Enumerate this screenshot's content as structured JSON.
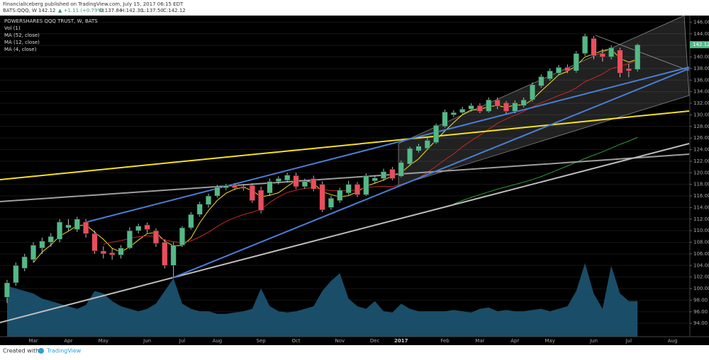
{
  "header": {
    "line1": "FinancialIceberg published on TradingView.com, July 15, 2017 06:15 EDT",
    "symbol": "BATS:QQQ, W",
    "last": "142.12",
    "change": "▲ +1.11 (+0.79%)",
    "open": "O:137.84",
    "high": "H:142.30",
    "low": "L:137.50",
    "close": "C:142.12"
  },
  "legend": [
    "POWERSHARES QQQ TRUST, W, BATS",
    "Vol (1)",
    "MA (52, close)",
    "MA (12, close)",
    "MA (4, close)"
  ],
  "footer": {
    "created": "Created with",
    "brand": "TradingView"
  },
  "chart_data": {
    "type": "candlestick",
    "categories": [
      null,
      null,
      null,
      "Mar",
      null,
      null,
      null,
      "Apr",
      null,
      null,
      null,
      "May",
      null,
      null,
      null,
      null,
      "Jun",
      null,
      null,
      null,
      "Jul",
      null,
      null,
      null,
      "Aug",
      null,
      null,
      null,
      null,
      "Sep",
      null,
      null,
      null,
      "Oct",
      null,
      null,
      null,
      null,
      "Nov",
      null,
      null,
      null,
      "Dec",
      null,
      null,
      "2017",
      null,
      null,
      null,
      null,
      "Feb",
      null,
      null,
      null,
      "Mar",
      null,
      null,
      null,
      "Apr",
      null,
      null,
      null,
      "May",
      null,
      null,
      null,
      null,
      "Jun",
      null,
      null,
      null,
      "Jul",
      null,
      null,
      null,
      null,
      "Aug",
      null
    ],
    "open": [
      98.5,
      101,
      103.5,
      105,
      107,
      108,
      108.5,
      110.5,
      110.2,
      111.5,
      109.5,
      106.5,
      106.2,
      105.8,
      107,
      110,
      111,
      110,
      108,
      104,
      107.5,
      110.5,
      112.8,
      114.5,
      116,
      117.4,
      117.9,
      117.6,
      117.8,
      117,
      116.5,
      118.5,
      118.7,
      119.5,
      117.6,
      119,
      118,
      114,
      115.2,
      116.5,
      118,
      116.2,
      118.6,
      119,
      120.6,
      119.4,
      121.5,
      123.8,
      124.2,
      125.2,
      128,
      130,
      130.4,
      131,
      131.6,
      130.6,
      132.6,
      132.1,
      130.6,
      131.6,
      132.6,
      135,
      136.2,
      137.2,
      138.2,
      137.6,
      140.6,
      143.2,
      140.6,
      140,
      141.2,
      138,
      137.84,
      null,
      null,
      null,
      null,
      null
    ],
    "high": [
      101.5,
      104.5,
      106,
      108,
      108.8,
      109.6,
      112,
      112,
      112.4,
      112,
      110,
      107.3,
      107,
      107.5,
      110.6,
      111.2,
      111.4,
      110.4,
      108.5,
      108,
      110.8,
      113.2,
      115,
      116.4,
      117.9,
      118.1,
      118.2,
      118,
      118.2,
      117.6,
      119,
      119.4,
      120,
      120,
      119,
      119.5,
      118.5,
      116,
      117.4,
      118.6,
      118.4,
      119.9,
      119.6,
      120.7,
      121,
      122.1,
      124.5,
      125,
      126,
      128.5,
      130.9,
      130.8,
      131.4,
      132,
      132,
      133,
      133,
      132.4,
      132.5,
      133,
      135.6,
      137,
      138,
      138.6,
      138.7,
      141,
      144,
      143.6,
      141.4,
      142,
      141.6,
      138.8,
      142.3,
      null,
      null,
      null,
      null,
      null
    ],
    "low": [
      97.5,
      100.5,
      103,
      104.5,
      106,
      107.2,
      108,
      110,
      109.8,
      108.8,
      106,
      105.2,
      105,
      105.2,
      106.8,
      109.5,
      109.6,
      107.2,
      103.5,
      102,
      107.2,
      110.2,
      112.4,
      114,
      115.7,
      117,
      117,
      116.9,
      114.8,
      113,
      116,
      118,
      118.3,
      117.2,
      117.2,
      116.8,
      113.2,
      113.6,
      114.8,
      116.2,
      115.8,
      116,
      118.2,
      118.6,
      118.7,
      119.2,
      121.2,
      123.5,
      124,
      125,
      127.8,
      129.6,
      130.1,
      130.6,
      130.3,
      130.4,
      131,
      130.2,
      130.3,
      131.3,
      132.3,
      134.7,
      135.9,
      136.9,
      137.2,
      137.3,
      140.2,
      139.6,
      139.2,
      139.6,
      136.5,
      136.5,
      137.5,
      null,
      null,
      null,
      null,
      null
    ],
    "close": [
      101,
      104,
      105.5,
      107.5,
      108.2,
      109,
      111.5,
      111,
      112,
      109.5,
      106.5,
      106,
      105.8,
      107,
      110,
      110.8,
      110.2,
      107.8,
      104,
      107.5,
      110.5,
      112.8,
      114.6,
      116,
      117.5,
      117.8,
      117.4,
      117.3,
      115.2,
      113.5,
      118.5,
      119,
      119.6,
      117.6,
      118.5,
      117.2,
      113.6,
      115.6,
      117,
      118,
      116.2,
      119.5,
      119.1,
      120.2,
      119,
      121.8,
      124.2,
      124.6,
      125.6,
      128.2,
      130.5,
      130.4,
      131,
      131.6,
      130.6,
      132.6,
      131.5,
      130.6,
      132.1,
      132.6,
      135.2,
      136.6,
      137.6,
      138.2,
      137.6,
      140.6,
      143.6,
      140.2,
      140,
      141.6,
      137.2,
      137.6,
      142.12,
      null,
      null,
      null,
      null,
      null
    ],
    "volume": [
      200,
      190,
      180,
      170,
      150,
      140,
      130,
      120,
      110,
      125,
      180,
      170,
      140,
      120,
      110,
      100,
      110,
      130,
      180,
      230,
      130,
      110,
      100,
      100,
      90,
      90,
      95,
      100,
      110,
      190,
      120,
      100,
      95,
      100,
      110,
      120,
      180,
      220,
      250,
      150,
      120,
      110,
      140,
      100,
      95,
      130,
      110,
      100,
      100,
      100,
      100,
      105,
      100,
      95,
      110,
      115,
      100,
      105,
      100,
      100,
      105,
      110,
      100,
      110,
      120,
      180,
      290,
      170,
      110,
      280,
      170,
      140,
      140,
      null,
      null,
      null,
      null,
      null
    ],
    "up_color": "#53b987",
    "down_color": "#eb4d5c",
    "volume_color": "#1e5a7a",
    "ylim": [
      91.7,
      147.15
    ],
    "yticks": [
      {
        "value": 94,
        "label": "94.00"
      },
      {
        "value": 96,
        "label": "96.00"
      },
      {
        "value": 98,
        "label": "98.00"
      },
      {
        "value": 100,
        "label": "100.00"
      },
      {
        "value": 102,
        "label": "102.00"
      },
      {
        "value": 104,
        "label": "104.00"
      },
      {
        "value": 106,
        "label": "106.00"
      },
      {
        "value": 108,
        "label": "108.00"
      },
      {
        "value": 110,
        "label": "110.00"
      },
      {
        "value": 112,
        "label": "112.00"
      },
      {
        "value": 114,
        "label": "114.00"
      },
      {
        "value": 116,
        "label": "116.00"
      },
      {
        "value": 118,
        "label": "118.00"
      },
      {
        "value": 120,
        "label": "120.00"
      },
      {
        "value": 122,
        "label": "122.00"
      },
      {
        "value": 124,
        "label": "124.00"
      },
      {
        "value": 126,
        "label": "126.00"
      },
      {
        "value": 128,
        "label": "128.00"
      },
      {
        "value": 130,
        "label": "130.00"
      },
      {
        "value": 132,
        "label": "132.00"
      },
      {
        "value": 134,
        "label": "134.00"
      },
      {
        "value": 136,
        "label": "136.00"
      },
      {
        "value": 138,
        "label": "138.00"
      },
      {
        "value": 140,
        "label": "140.00"
      },
      {
        "value": 142,
        "label": "142.00"
      },
      {
        "value": 144,
        "label": "144.00"
      },
      {
        "value": 146,
        "label": "146.00"
      }
    ],
    "grid": true
  }
}
